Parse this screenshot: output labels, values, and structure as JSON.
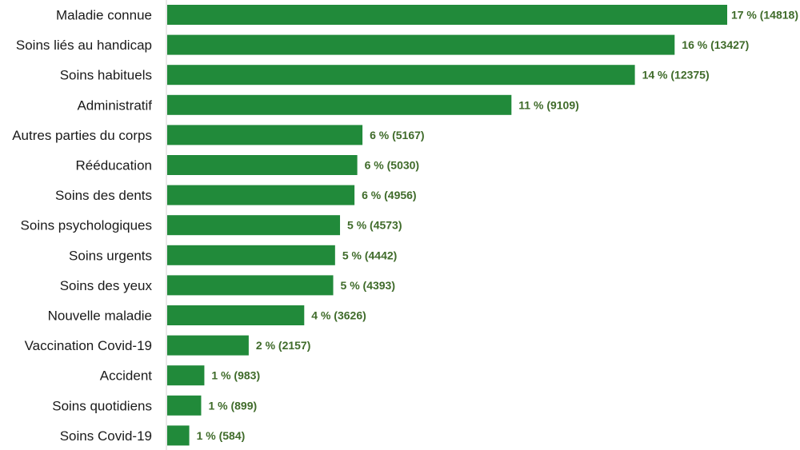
{
  "chart_data": {
    "type": "bar",
    "orientation": "horizontal",
    "categories": [
      "Maladie connue",
      "Soins liés au handicap",
      "Soins habituels",
      "Administratif",
      "Autres parties du corps",
      "Rééducation",
      "Soins des dents",
      "Soins psychologiques",
      "Soins urgents",
      "Soins des yeux",
      "Nouvelle maladie",
      "Vaccination Covid-19",
      "Accident",
      "Soins quotidiens",
      "Soins Covid-19"
    ],
    "values": [
      14818,
      13427,
      12375,
      9109,
      5167,
      5030,
      4956,
      4573,
      4442,
      4393,
      3626,
      2157,
      983,
      899,
      584
    ],
    "data_labels": [
      "17 % (14818)",
      "16 % (13427)",
      "14 % (12375)",
      "11 % (9109)",
      "6 % (5167)",
      "6 % (5030)",
      "6 % (4956)",
      "5 % (4573)",
      "5 % (4442)",
      "5 % (4393)",
      "4 % (3626)",
      "2 % (2157)",
      "1 % (983)",
      "1 % (899)",
      "1 % (584)"
    ],
    "xlim": [
      0,
      14818
    ],
    "grid": false,
    "bar_color": "#218a3a",
    "label_color": "#3f6b2a",
    "axis_color": "#d0d0d0"
  }
}
